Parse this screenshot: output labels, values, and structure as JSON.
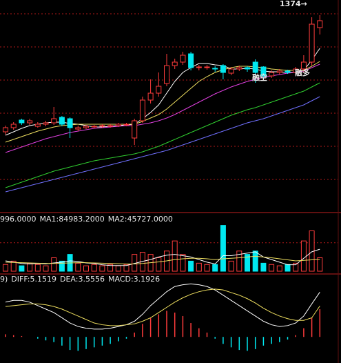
{
  "chart_data": [
    {
      "type": "candlestick",
      "ylim": [
        1091,
        1396
      ],
      "grid_values": [
        1376,
        1328,
        1280,
        1232,
        1184,
        1136
      ],
      "grid_color": "#b01818",
      "up_color": "#ff3c3c",
      "down_color": "#00e8f0",
      "open": [
        1205,
        1211,
        1222,
        1218,
        1213,
        1216,
        1218,
        1226,
        1224,
        1209,
        1211,
        1212,
        1213,
        1213,
        1214,
        1215,
        1196,
        1221,
        1251,
        1261,
        1275,
        1301,
        1306,
        1318,
        1298,
        1299,
        1297,
        1301,
        1290,
        1296,
        1298,
        1306,
        1299,
        1286,
        1291,
        1293,
        1291,
        1296,
        1306,
        1356
      ],
      "high": [
        1214,
        1219,
        1224,
        1224,
        1219,
        1221,
        1241,
        1228,
        1226,
        1214,
        1215,
        1215,
        1216,
        1216,
        1218,
        1218,
        1224,
        1256,
        1281,
        1291,
        1318,
        1311,
        1321,
        1321,
        1302,
        1302,
        1300,
        1303,
        1299,
        1301,
        1300,
        1310,
        1300,
        1294,
        1296,
        1295,
        1299,
        1316,
        1371,
        1374
      ],
      "low": [
        1201,
        1208,
        1215,
        1215,
        1211,
        1213,
        1215,
        1213,
        1196,
        1206,
        1209,
        1210,
        1211,
        1211,
        1212,
        1213,
        1186,
        1218,
        1246,
        1256,
        1271,
        1296,
        1302,
        1294,
        1294,
        1295,
        1292,
        1281,
        1287,
        1293,
        1292,
        1276,
        1281,
        1283,
        1288,
        1289,
        1289,
        1291,
        1301,
        1346
      ],
      "close": [
        1211,
        1216,
        1218,
        1221,
        1216,
        1218,
        1224,
        1216,
        1211,
        1211,
        1213,
        1213,
        1214,
        1214,
        1216,
        1216,
        1221,
        1251,
        1261,
        1271,
        1301,
        1306,
        1316,
        1298,
        1299,
        1299,
        1296,
        1291,
        1296,
        1298,
        1296,
        1291,
        1286,
        1291,
        1293,
        1291,
        1296,
        1306,
        1361,
        1366
      ],
      "lines": [
        {
          "color": "#ffffff",
          "values": [
            1200,
            1205,
            1210,
            1214,
            1216,
            1218,
            1219,
            1219,
            1217,
            1216,
            1214,
            1212,
            1212,
            1213,
            1214,
            1215,
            1216,
            1224,
            1233,
            1244,
            1261,
            1278,
            1291,
            1298,
            1304,
            1304,
            1302,
            1301,
            1296,
            1296,
            1297,
            1296,
            1293,
            1292,
            1292,
            1291,
            1291,
            1294,
            1309,
            1326
          ]
        },
        {
          "color": "#f0e060",
          "values": [
            1190,
            1194,
            1198,
            1202,
            1206,
            1209,
            1212,
            1214,
            1215,
            1216,
            1216,
            1216,
            1216,
            1216,
            1216,
            1216,
            1216,
            1220,
            1225,
            1230,
            1238,
            1248,
            1258,
            1268,
            1278,
            1285,
            1291,
            1295,
            1298,
            1300,
            1300,
            1299,
            1298,
            1296,
            1295,
            1294,
            1294,
            1294,
            1300,
            1307
          ]
        },
        {
          "color": "#e040e0",
          "values": [
            1175,
            1179,
            1183,
            1187,
            1191,
            1195,
            1198,
            1201,
            1204,
            1206,
            1208,
            1210,
            1211,
            1212,
            1213,
            1214,
            1214,
            1216,
            1218,
            1221,
            1225,
            1230,
            1236,
            1242,
            1248,
            1254,
            1260,
            1265,
            1270,
            1274,
            1278,
            1281,
            1284,
            1286,
            1288,
            1290,
            1291,
            1293,
            1298,
            1303
          ]
        },
        {
          "color": "#30d030",
          "values": [
            1124,
            1128,
            1132,
            1136,
            1140,
            1144,
            1148,
            1151,
            1154,
            1157,
            1160,
            1163,
            1165,
            1167,
            1169,
            1171,
            1173,
            1176,
            1180,
            1184,
            1189,
            1194,
            1199,
            1204,
            1209,
            1214,
            1219,
            1224,
            1229,
            1233,
            1237,
            1240,
            1244,
            1248,
            1252,
            1256,
            1260,
            1264,
            1270,
            1276
          ]
        },
        {
          "color": "#7070ff",
          "values": [
            1118,
            1121,
            1124,
            1127,
            1130,
            1133,
            1136,
            1139,
            1142,
            1145,
            1148,
            1151,
            1154,
            1157,
            1160,
            1163,
            1166,
            1169,
            1172,
            1175,
            1178,
            1182,
            1186,
            1190,
            1194,
            1198,
            1202,
            1206,
            1210,
            1214,
            1218,
            1221,
            1224,
            1228,
            1232,
            1236,
            1240,
            1244,
            1250,
            1256
          ]
        }
      ],
      "annotations": [
        "1374→",
        "融空",
        "融多"
      ]
    },
    {
      "type": "volume",
      "header": [
        "996.0000",
        "MA1:84983.2000",
        "MA2:45727.0000"
      ],
      "ylim": [
        0,
        200000
      ],
      "grid_values": [
        110000
      ],
      "values": [
        26000,
        39000,
        21000,
        31000,
        26000,
        21000,
        52000,
        39000,
        65000,
        31000,
        21000,
        26000,
        21000,
        26000,
        21000,
        26000,
        65000,
        73000,
        65000,
        52000,
        78000,
        117000,
        65000,
        39000,
        31000,
        26000,
        26000,
        177000,
        39000,
        78000,
        65000,
        78000,
        31000,
        26000,
        21000,
        26000,
        31000,
        117000,
        156000,
        52000
      ],
      "lines": [
        {
          "color": "#ffffff",
          "values": [
            40000,
            35000,
            30000,
            28000,
            30000,
            28000,
            32000,
            35000,
            40000,
            38000,
            32000,
            30000,
            25000,
            22000,
            22000,
            22000,
            30000,
            38000,
            45000,
            55000,
            62000,
            65000,
            60000,
            55000,
            45000,
            35000,
            28000,
            60000,
            60000,
            65000,
            70000,
            75000,
            55000,
            45000,
            35000,
            25000,
            25000,
            50000,
            75000,
            84983.2
          ]
        },
        {
          "color": "#f0e060",
          "values": [
            35000,
            34000,
            33000,
            32000,
            31000,
            30000,
            30000,
            31000,
            32000,
            33000,
            33000,
            32000,
            31000,
            30000,
            29000,
            28000,
            28000,
            30000,
            33000,
            36000,
            40000,
            45000,
            48000,
            50000,
            50000,
            48000,
            45000,
            48000,
            50000,
            52000,
            55000,
            58000,
            55000,
            52000,
            48000,
            44000,
            40000,
            42000,
            44000,
            45727
          ]
        }
      ]
    },
    {
      "type": "macd",
      "header": [
        "9)",
        "DIFF:5.1519",
        "DEA:3.5556",
        "MACD:3.1926"
      ],
      "ylim": [
        -3,
        7
      ],
      "up_color": "#ff3c3c",
      "down_color": "#00e8f0",
      "values": [
        0.3,
        0.2,
        0.1,
        0,
        -0.2,
        -0.4,
        -0.6,
        -1.0,
        -1.5,
        -1.6,
        -1.4,
        -1.2,
        -1.0,
        -0.8,
        -0.5,
        -0.2,
        0.5,
        1.5,
        2.2,
        2.6,
        3.0,
        2.8,
        2.4,
        1.6,
        1.0,
        0.5,
        -0.2,
        -0.8,
        -1.2,
        -1.5,
        -1.6,
        -1.4,
        -1.0,
        -0.8,
        -0.6,
        -0.3,
        0.2,
        1.0,
        2.2,
        3.1926
      ],
      "lines": [
        {
          "color": "#ffffff",
          "values": [
            4.0,
            4.2,
            4.2,
            4.0,
            3.6,
            3.2,
            2.8,
            2.2,
            1.6,
            1.2,
            1.0,
            0.9,
            0.9,
            1.0,
            1.2,
            1.4,
            1.8,
            2.6,
            3.6,
            4.4,
            5.2,
            5.8,
            6.0,
            6.1,
            6.0,
            5.8,
            5.4,
            4.8,
            4.2,
            3.6,
            3.0,
            2.4,
            1.8,
            1.4,
            1.2,
            1.3,
            1.6,
            2.4,
            3.8,
            5.1519
          ]
        },
        {
          "color": "#f0e060",
          "values": [
            3.5,
            3.6,
            3.7,
            3.8,
            3.8,
            3.7,
            3.5,
            3.2,
            2.8,
            2.4,
            2.0,
            1.6,
            1.4,
            1.3,
            1.3,
            1.4,
            1.5,
            1.8,
            2.2,
            2.8,
            3.4,
            4.0,
            4.5,
            4.9,
            5.2,
            5.4,
            5.5,
            5.4,
            5.1,
            4.8,
            4.4,
            3.9,
            3.3,
            2.8,
            2.4,
            2.1,
            1.9,
            1.9,
            2.2,
            3.5556
          ]
        }
      ]
    }
  ]
}
